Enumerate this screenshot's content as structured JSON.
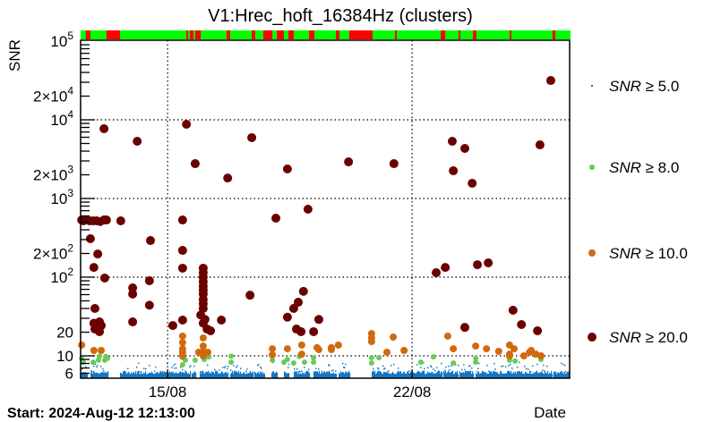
{
  "chart_data": {
    "type": "scatter",
    "title": "V1:Hrec_hoft_16384Hz (clusters)",
    "ylabel": "SNR",
    "xlabel": "Date",
    "x_units": "days since start",
    "start_label": "Start: 2024-Aug-12 12:13:00",
    "xlim": [
      0,
      14
    ],
    "ylim": [
      5.2,
      100000
    ],
    "yscale": "log",
    "grid": true,
    "x_ticks": [
      {
        "value": 2.49,
        "label": "15/08"
      },
      {
        "value": 9.49,
        "label": "22/08"
      }
    ],
    "y_ticks": [
      {
        "value": 100000,
        "pre": "10",
        "exp": "5"
      },
      {
        "value": 20000,
        "pre": "2×10",
        "exp": "4"
      },
      {
        "value": 10000,
        "pre": "10",
        "exp": "4"
      },
      {
        "value": 2000,
        "pre": "2×10",
        "exp": "3"
      },
      {
        "value": 1000,
        "pre": "10",
        "exp": "3"
      },
      {
        "value": 200,
        "pre": "2×10",
        "exp": "2"
      },
      {
        "value": 100,
        "pre": "10",
        "exp": "2"
      },
      {
        "value": 20,
        "pre": "20",
        "exp": ""
      },
      {
        "value": 10,
        "pre": "10",
        "exp": ""
      },
      {
        "value": 6,
        "pre": "6",
        "exp": ""
      }
    ],
    "legend_position": "right",
    "legend": [
      {
        "pre": "SNR",
        "post": " ≥ 5.0",
        "color": "#1576c2",
        "size": "tiny"
      },
      {
        "pre": "SNR",
        "post": " ≥ 8.0",
        "color": "#66cc55",
        "size": "small"
      },
      {
        "pre": "SNR",
        "post": " ≥ 10.0",
        "color": "#d2690f",
        "size": "medium"
      },
      {
        "pre": "SNR",
        "post": " ≥ 20.0",
        "color": "#6b0000",
        "size": "large"
      }
    ],
    "segments_bar": {
      "good_color": "#00ff00",
      "bad_color": "#ff0000",
      "bad": [
        [
          0.15,
          0.28
        ],
        [
          0.74,
          1.13
        ],
        [
          3.03,
          3.08
        ],
        [
          3.13,
          3.23
        ],
        [
          3.28,
          3.44
        ],
        [
          4.18,
          4.28
        ],
        [
          4.9,
          5.0
        ],
        [
          5.23,
          5.49
        ],
        [
          5.62,
          5.82
        ],
        [
          5.95,
          6.1
        ],
        [
          6.54,
          6.69
        ],
        [
          7.31,
          7.41
        ],
        [
          7.69,
          8.36
        ],
        [
          9.0,
          9.05
        ],
        [
          10.31,
          10.44
        ],
        [
          10.82,
          10.87
        ],
        [
          11.23,
          11.33
        ],
        [
          12.28,
          12.33
        ],
        [
          13.51,
          13.59
        ]
      ]
    },
    "series": [
      {
        "name": "SNR ≥ 5.0",
        "coverage_segments": [
          [
            0,
            0.18
          ],
          [
            0.28,
            0.77
          ],
          [
            1.13,
            3.13
          ],
          [
            3.18,
            3.28
          ],
          [
            3.41,
            4.21
          ],
          [
            4.28,
            4.92
          ],
          [
            4.97,
            5.26
          ],
          [
            5.46,
            5.62
          ],
          [
            5.82,
            5.95
          ],
          [
            6.1,
            6.54
          ],
          [
            6.67,
            7.31
          ],
          [
            7.38,
            7.69
          ],
          [
            8.33,
            9.0
          ],
          [
            9.03,
            10.33
          ],
          [
            10.38,
            10.79
          ],
          [
            10.85,
            11.23
          ],
          [
            11.31,
            13.49
          ],
          [
            13.54,
            13.97
          ]
        ],
        "snr_range": [
          5.0,
          8.0
        ]
      },
      {
        "name": "SNR ≥ 8.0",
        "points": [
          [
            0.03,
            9.3
          ],
          [
            0.08,
            8.3
          ],
          [
            0.36,
            8.3
          ],
          [
            0.51,
            8.8
          ],
          [
            0.54,
            9.9
          ],
          [
            0.69,
            8.8
          ],
          [
            0.72,
            9.8
          ],
          [
            0.77,
            9.3
          ],
          [
            2.92,
            9.5
          ],
          [
            2.92,
            7.7
          ],
          [
            3.0,
            8.8
          ],
          [
            3.28,
            8.8
          ],
          [
            3.54,
            9.0
          ],
          [
            3.67,
            9.7
          ],
          [
            4.31,
            9.9
          ],
          [
            4.31,
            8.3
          ],
          [
            5.49,
            8.8
          ],
          [
            5.82,
            8.3
          ],
          [
            5.92,
            9.0
          ],
          [
            6.1,
            8.1
          ],
          [
            6.26,
            9.8
          ],
          [
            6.41,
            8.3
          ],
          [
            6.67,
            9.5
          ],
          [
            6.67,
            8.3
          ],
          [
            8.33,
            9.5
          ],
          [
            8.33,
            8.1
          ],
          [
            8.54,
            9.5
          ],
          [
            9.74,
            8.3
          ],
          [
            10.1,
            9.7
          ],
          [
            10.67,
            8.1
          ],
          [
            11.31,
            9.3
          ],
          [
            11.31,
            8.3
          ],
          [
            12.28,
            8.8
          ],
          [
            12.44,
            8.6
          ],
          [
            13.18,
            9.0
          ]
        ]
      },
      {
        "name": "SNR ≥ 10.0",
        "points": [
          [
            0.03,
            13.7
          ],
          [
            0.38,
            11.7
          ],
          [
            0.59,
            11.7
          ],
          [
            2.92,
            17.8
          ],
          [
            2.92,
            14.8
          ],
          [
            2.92,
            12.3
          ],
          [
            2.92,
            11.1
          ],
          [
            2.92,
            10.0
          ],
          [
            3.38,
            11.1
          ],
          [
            3.51,
            11.4
          ],
          [
            3.64,
            11.1
          ],
          [
            3.51,
            10.0
          ],
          [
            3.51,
            13.3
          ],
          [
            3.51,
            16.9
          ],
          [
            5.49,
            12.3
          ],
          [
            5.49,
            10.3
          ],
          [
            5.92,
            12.3
          ],
          [
            6.33,
            13.7
          ],
          [
            6.33,
            10.5
          ],
          [
            6.77,
            12.7
          ],
          [
            6.82,
            12.0
          ],
          [
            7.18,
            12.7
          ],
          [
            7.18,
            12.0
          ],
          [
            7.38,
            13.7
          ],
          [
            8.33,
            19.2
          ],
          [
            8.33,
            16.9
          ],
          [
            8.33,
            15.2
          ],
          [
            8.95,
            17.3
          ],
          [
            8.77,
            11.1
          ],
          [
            9.26,
            11.7
          ],
          [
            10.51,
            17.8
          ],
          [
            10.67,
            12.3
          ],
          [
            11.31,
            13.3
          ],
          [
            11.62,
            12.3
          ],
          [
            11.97,
            11.4
          ],
          [
            12.28,
            13.7
          ],
          [
            12.41,
            12.3
          ],
          [
            12.28,
            10.5
          ],
          [
            12.28,
            10.0
          ],
          [
            12.69,
            10.0
          ],
          [
            12.85,
            11.1
          ],
          [
            12.9,
            11.7
          ],
          [
            13.03,
            10.5
          ],
          [
            13.18,
            10.0
          ]
        ]
      },
      {
        "name": "SNR ≥ 20.0",
        "points": [
          [
            0.67,
            7700
          ],
          [
            1.62,
            5340
          ],
          [
            3.03,
            8770
          ],
          [
            3.28,
            2770
          ],
          [
            4.21,
            1820
          ],
          [
            4.9,
            5930
          ],
          [
            5.92,
            2370
          ],
          [
            7.67,
            2920
          ],
          [
            8.97,
            2770
          ],
          [
            10.64,
            5340
          ],
          [
            11.0,
            4330
          ],
          [
            10.67,
            2250
          ],
          [
            11.21,
            1560
          ],
          [
            13.15,
            4800
          ],
          [
            13.46,
            31600
          ],
          [
            0.03,
            533
          ],
          [
            0.08,
            520
          ],
          [
            0.13,
            533
          ],
          [
            0.26,
            520
          ],
          [
            0.36,
            520
          ],
          [
            0.46,
            520
          ],
          [
            0.56,
            510
          ],
          [
            0.67,
            533
          ],
          [
            0.74,
            533
          ],
          [
            1.15,
            520
          ],
          [
            2.92,
            533
          ],
          [
            5.59,
            562
          ],
          [
            6.51,
            731
          ],
          [
            0.28,
            308
          ],
          [
            2.0,
            292
          ],
          [
            2.92,
            219
          ],
          [
            0.49,
            197
          ],
          [
            0.38,
            133
          ],
          [
            0.69,
            97.5
          ],
          [
            1.49,
            73
          ],
          [
            1.49,
            61
          ],
          [
            1.97,
            90
          ],
          [
            1.97,
            44
          ],
          [
            0.41,
            40
          ],
          [
            1.49,
            27
          ],
          [
            0.38,
            26
          ],
          [
            0.54,
            27
          ],
          [
            0.59,
            24.3
          ],
          [
            0.41,
            21.9
          ],
          [
            0.54,
            20.3
          ],
          [
            2.64,
            24.3
          ],
          [
            2.92,
            28.5
          ],
          [
            2.92,
            130
          ],
          [
            3.51,
            130
          ],
          [
            3.51,
            114
          ],
          [
            3.51,
            100
          ],
          [
            3.51,
            87.7
          ],
          [
            3.51,
            77
          ],
          [
            3.51,
            68
          ],
          [
            3.51,
            61
          ],
          [
            3.51,
            52
          ],
          [
            3.51,
            46
          ],
          [
            3.51,
            40
          ],
          [
            3.44,
            33
          ],
          [
            3.56,
            29
          ],
          [
            3.51,
            26
          ],
          [
            3.62,
            21.9
          ],
          [
            3.72,
            20.8
          ],
          [
            4.03,
            28.5
          ],
          [
            4.85,
            59
          ],
          [
            5.92,
            31
          ],
          [
            6.1,
            40
          ],
          [
            6.23,
            48
          ],
          [
            6.38,
            66
          ],
          [
            6.18,
            21.9
          ],
          [
            6.31,
            20.3
          ],
          [
            6.82,
            29
          ],
          [
            6.67,
            20.3
          ],
          [
            10.18,
            114
          ],
          [
            10.44,
            133
          ],
          [
            11.36,
            144
          ],
          [
            11.67,
            152
          ],
          [
            11.0,
            23
          ],
          [
            12.38,
            38
          ],
          [
            12.62,
            25
          ],
          [
            13.08,
            20.8
          ]
        ]
      }
    ]
  }
}
